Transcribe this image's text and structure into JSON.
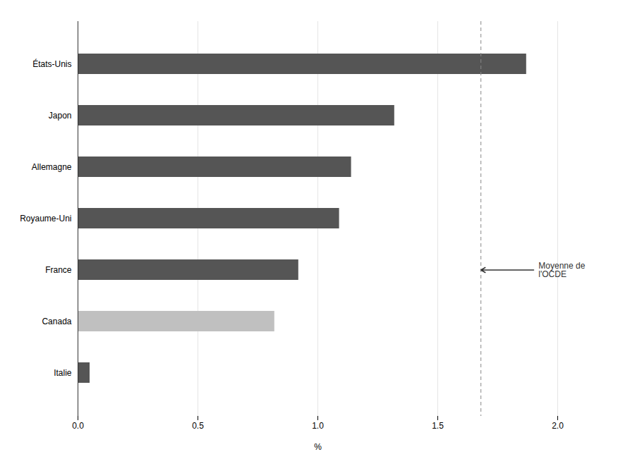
{
  "chart_data": {
    "type": "bar",
    "orientation": "horizontal",
    "categories": [
      "Italie",
      "Canada",
      "France",
      "Royaume-Uni",
      "Allemagne",
      "Japon",
      "États-Unis"
    ],
    "values": [
      0.05,
      0.82,
      0.92,
      1.09,
      1.14,
      1.32,
      1.87
    ],
    "colors": [
      "#555555",
      "#c0c0c0",
      "#555555",
      "#555555",
      "#555555",
      "#555555",
      "#555555"
    ],
    "xlabel": "%",
    "xlim": [
      0,
      2.0
    ],
    "xticks": [
      {
        "value": 0,
        "label": "0.0"
      },
      0.5,
      {
        "value": 1,
        "label": "1.0"
      },
      1.5,
      {
        "value": 2,
        "label": "2.0"
      }
    ],
    "grid": true,
    "reference_line": {
      "value": 1.68,
      "label_lines": [
        "Moyenne de",
        "l'OCDE"
      ],
      "line_style": "dashed"
    }
  }
}
